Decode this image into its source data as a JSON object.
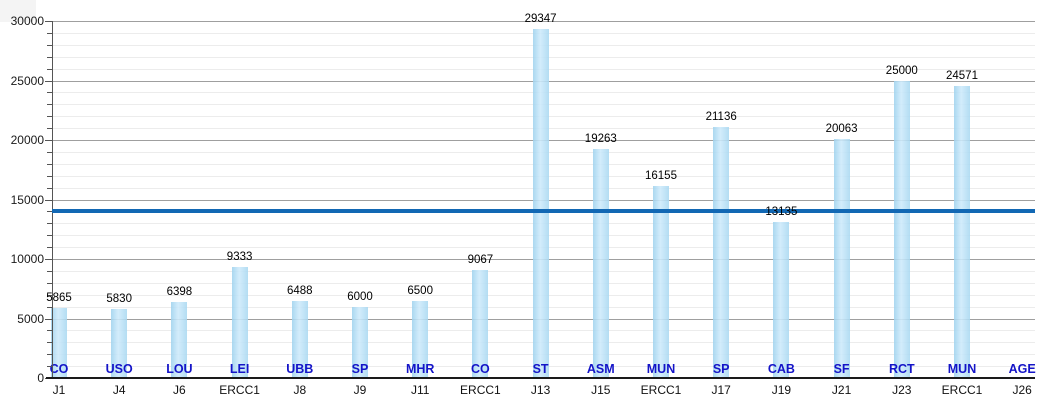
{
  "chart_data": {
    "type": "bar",
    "title": "",
    "legend": "none",
    "grid": "horizontal, major every 5000 and minor every 1000",
    "categories": [
      "J1",
      "J4",
      "J6",
      "ERCC1",
      "J8",
      "J9",
      "J11",
      "ERCC1",
      "J13",
      "J15",
      "ERCC1",
      "J17",
      "J19",
      "J21",
      "J23",
      "ERCC1",
      "J26"
    ],
    "series_codes": [
      "CO",
      "USO",
      "LOU",
      "LEI",
      "UBB",
      "SP",
      "MHR",
      "CO",
      "ST",
      "ASM",
      "MUN",
      "SP",
      "CAB",
      "SF",
      "RCT",
      "MUN",
      "AGE"
    ],
    "values": [
      5865,
      5830,
      6398,
      9333,
      6488,
      6000,
      6500,
      9067,
      29347,
      19263,
      16155,
      21136,
      13135,
      20063,
      25000,
      24571,
      null
    ],
    "value_labels": [
      "5865",
      "5830",
      "6398",
      "9333",
      "6488",
      "6000",
      "6500",
      "9067",
      "29347",
      "19263",
      "16155",
      "21136",
      "13135",
      "20063",
      "25000",
      "24571",
      ""
    ],
    "xlabel": "",
    "ylabel": "",
    "ylim": [
      0,
      30000
    ],
    "y_major_step": 5000,
    "y_minor_step": 1000,
    "y_tick_labels": [
      "0",
      "5000",
      "10000",
      "15000",
      "20000",
      "25000",
      "30000"
    ],
    "reference_line": {
      "value": 14009,
      "color": "#1268b4"
    },
    "colors": {
      "bar_edge": "#9fd2ee",
      "bar_center": "#cdeafb",
      "bar_right": "#a9d8f1",
      "code_label": "#1414c8",
      "value_label": "#000000",
      "axis_y": "#555555",
      "axis_x": "#1a1a1a",
      "gridline_major": "#9f9f9f",
      "gridline_minor": "#ececec",
      "background": "#ffffff"
    }
  }
}
